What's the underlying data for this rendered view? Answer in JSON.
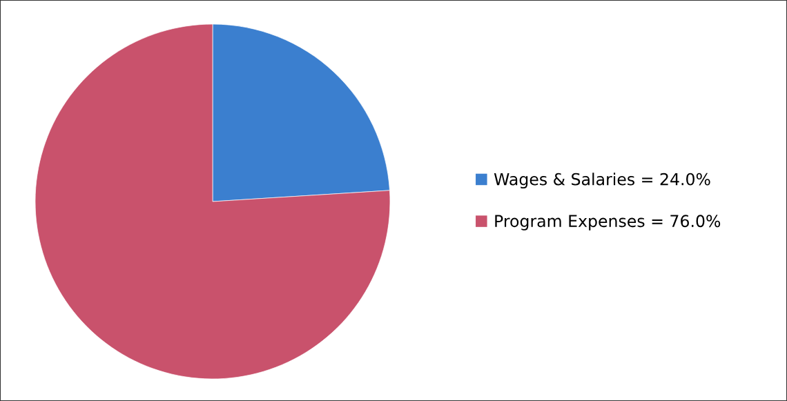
{
  "chart_data": {
    "type": "pie",
    "categories": [
      "Wages & Salaries = 24.0%",
      "Program Expenses = 76.0%"
    ],
    "values": [
      24,
      76
    ],
    "colors": [
      "#3b7fcf",
      "#c9526c"
    ],
    "legend": "right"
  }
}
